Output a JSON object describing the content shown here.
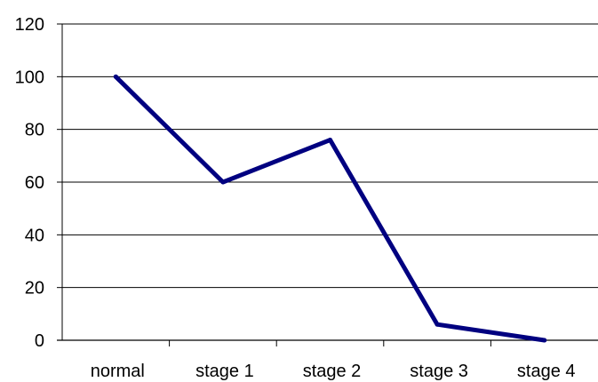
{
  "chart_data": {
    "type": "line",
    "categories": [
      "normal",
      "stage 1",
      "stage 2",
      "stage 3",
      "stage 4"
    ],
    "series": [
      {
        "values": [
          100,
          60,
          76,
          6,
          0
        ]
      }
    ],
    "ylim": [
      0,
      120
    ],
    "yticks": [
      0,
      20,
      40,
      60,
      80,
      100,
      120
    ],
    "grid": true,
    "legend": "none",
    "line_color": "#000080"
  }
}
